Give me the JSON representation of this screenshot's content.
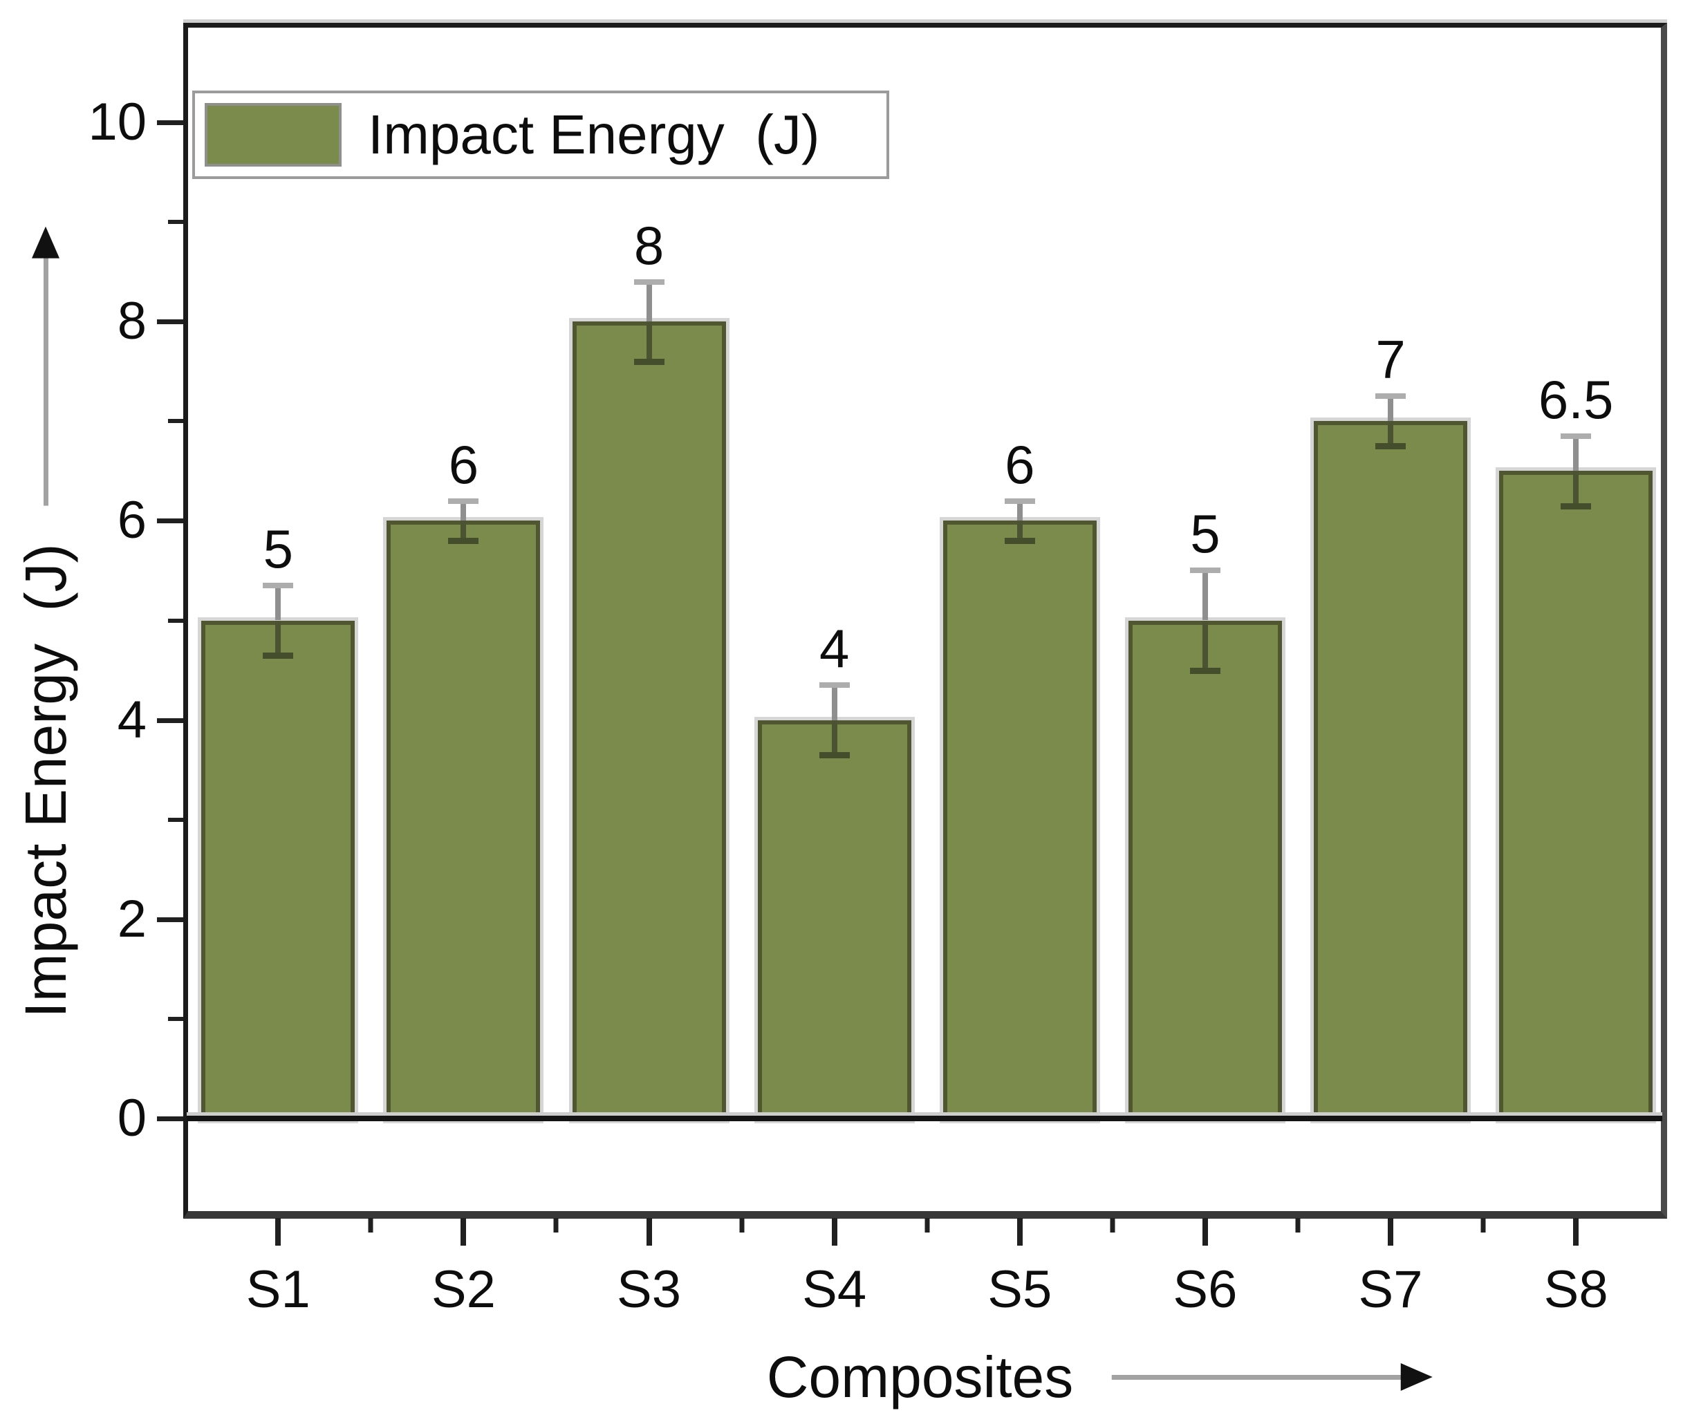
{
  "legend": {
    "label": "Impact Energy  (J)",
    "swatch_color": "#7b8b4b"
  },
  "y_axis": {
    "title": "Impact Energy  (J)",
    "major_ticks": [
      0,
      2,
      4,
      6,
      8,
      10
    ],
    "major_tick_labels": [
      "0",
      "2",
      "4",
      "6",
      "8",
      "10"
    ],
    "minor_ticks": [
      1,
      3,
      5,
      7,
      9
    ],
    "range": [
      -1,
      11
    ]
  },
  "x_axis": {
    "title": "Composites",
    "categories": [
      "S1",
      "S2",
      "S3",
      "S4",
      "S5",
      "S6",
      "S7",
      "S8"
    ]
  },
  "chart_data": {
    "type": "bar",
    "title": "",
    "categories": [
      "S1",
      "S2",
      "S3",
      "S4",
      "S5",
      "S6",
      "S7",
      "S8"
    ],
    "values": [
      5,
      6,
      8,
      4,
      6,
      5,
      7,
      6.5
    ],
    "errors": [
      0.35,
      0.2,
      0.4,
      0.35,
      0.2,
      0.5,
      0.25,
      0.35
    ],
    "bar_labels": [
      "5",
      "6",
      "8",
      "4",
      "6",
      "5",
      "7",
      "6.5"
    ],
    "series": [
      {
        "name": "Impact Energy  (J)",
        "values": [
          5,
          6,
          8,
          4,
          6,
          5,
          7,
          6.5
        ]
      }
    ],
    "xlabel": "Composites",
    "ylabel": "Impact Energy  (J)",
    "ylim": [
      -1,
      11
    ],
    "yticks": [
      0,
      2,
      4,
      6,
      8,
      10
    ],
    "legend_position": "top-left",
    "grid": false,
    "bar_color": "#7b8b4b",
    "bar_border_color": "#4f5630",
    "error_bar_cap_top_color": "#adadad",
    "error_bar_lower_color": "#4b5332"
  }
}
